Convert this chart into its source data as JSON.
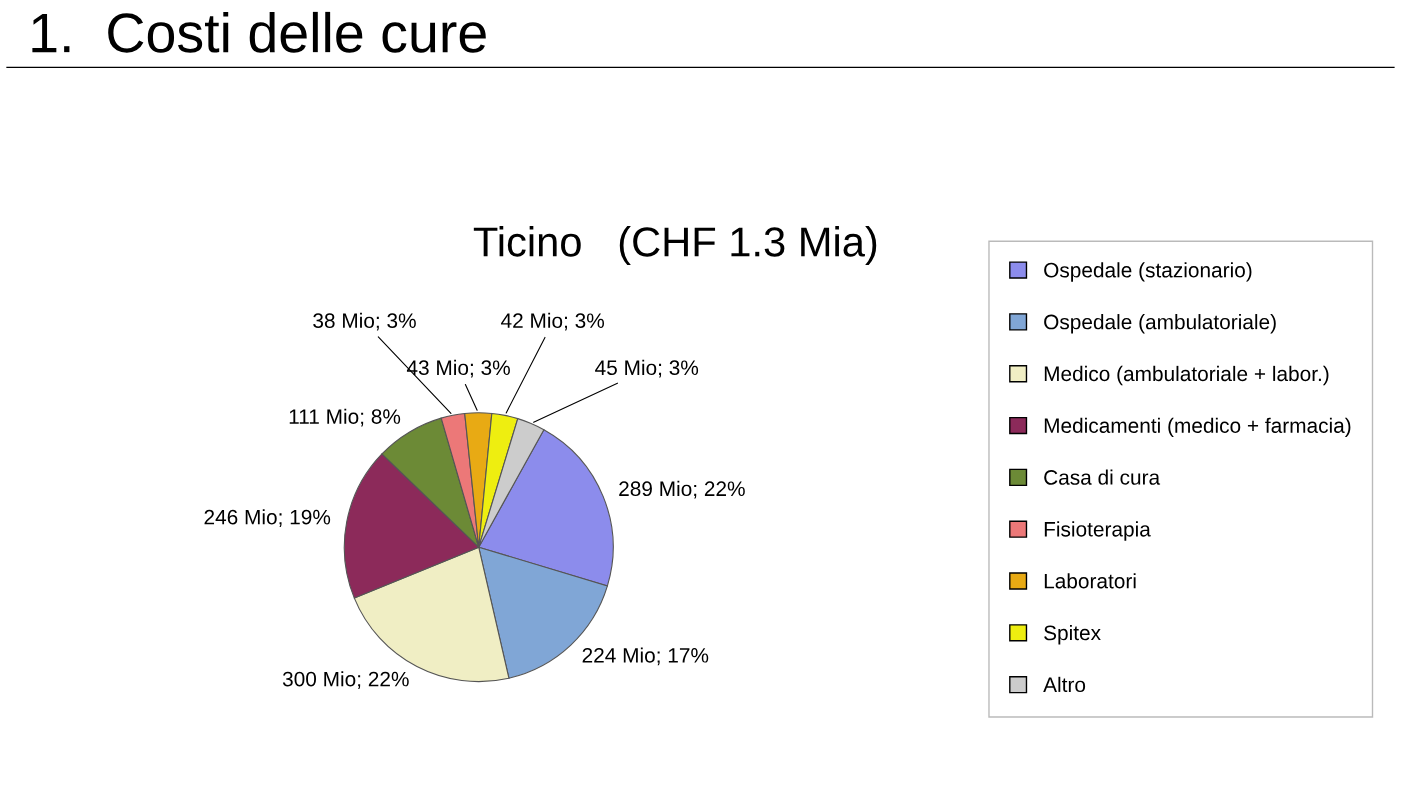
{
  "chart_data": {
    "type": "pie",
    "title": "1.  Costi delle cure",
    "subtitle": "Ticino   (CHF 1.3 Mia)",
    "categories": [
      "Ospedale (stazionario)",
      "Ospedale (ambulatoriale)",
      "Medico (ambulatoriale + labor.)",
      "Medicamenti (medico + farmacia)",
      "Casa di cura",
      "Fisioterapia",
      "Laboratori",
      "Spitex",
      "Altro"
    ],
    "values": [
      289,
      224,
      300,
      246,
      111,
      38,
      43,
      42,
      45
    ],
    "value_labels": [
      "289 Mio; 22%",
      "224 Mio; 17%",
      "300 Mio; 22%",
      "246 Mio; 19%",
      "111 Mio; 8%",
      "38 Mio; 3%",
      "43 Mio; 3%",
      "42 Mio; 3%",
      "45 Mio; 3%"
    ],
    "colors": [
      "#8c8cec",
      "#80a6d6",
      "#f0eec4",
      "#8c2a5a",
      "#6c8a36",
      "#ec7878",
      "#e8aa14",
      "#eeee10",
      "#cccccc"
    ],
    "legend": "right"
  }
}
